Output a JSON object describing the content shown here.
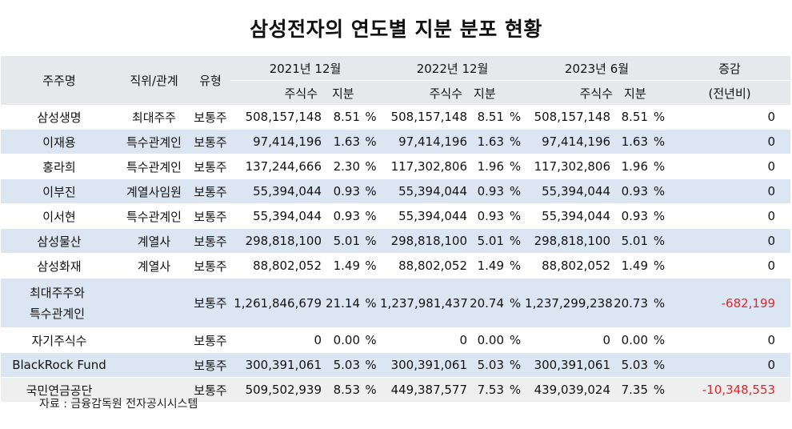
{
  "title": "삼성전자의 연도별 지분 분포 현황",
  "header": {
    "shareholder": "주주명",
    "position": "직위/관계",
    "type": "유형",
    "period1": "2021년 12월",
    "period2": "2022년 12월",
    "period3": "2023년 6월",
    "change": "증감",
    "change_sub": "(전년비)",
    "shares": "주식수",
    "stake": "지분"
  },
  "rows": [
    {
      "name": "삼성생명",
      "relation": "최대주주",
      "type": "보통주",
      "s1": "508,157,148",
      "p1": "8.51",
      "s2": "508,157,148",
      "p2": "8.51",
      "s3": "508,157,148",
      "p3": "8.51",
      "change": "0"
    },
    {
      "name": "이재용",
      "relation": "특수관계인",
      "type": "보통주",
      "s1": "97,414,196",
      "p1": "1.63",
      "s2": "97,414,196",
      "p2": "1.63",
      "s3": "97,414,196",
      "p3": "1.63",
      "change": "0"
    },
    {
      "name": "홍라희",
      "relation": "특수관계인",
      "type": "보통주",
      "s1": "137,244,666",
      "p1": "2.30",
      "s2": "117,302,806",
      "p2": "1.96",
      "s3": "117,302,806",
      "p3": "1.96",
      "change": "0"
    },
    {
      "name": "이부진",
      "relation": "계열사임원",
      "type": "보통주",
      "s1": "55,394,044",
      "p1": "0.93",
      "s2": "55,394,044",
      "p2": "0.93",
      "s3": "55,394,044",
      "p3": "0.93",
      "change": "0"
    },
    {
      "name": "이서현",
      "relation": "특수관계인",
      "type": "보통주",
      "s1": "55,394,044",
      "p1": "0.93",
      "s2": "55,394,044",
      "p2": "0.93",
      "s3": "55,394,044",
      "p3": "0.93",
      "change": "0"
    },
    {
      "name": "삼성물산",
      "relation": "계열사",
      "type": "보통주",
      "s1": "298,818,100",
      "p1": "5.01",
      "s2": "298,818,100",
      "p2": "5.01",
      "s3": "298,818,100",
      "p3": "5.01",
      "change": "0"
    },
    {
      "name": "삼성화재",
      "relation": "계열사",
      "type": "보통주",
      "s1": "88,802,052",
      "p1": "1.49",
      "s2": "88,802,052",
      "p2": "1.49",
      "s3": "88,802,052",
      "p3": "1.49",
      "change": "0"
    },
    {
      "name_line1": "최대주주와",
      "name_line2": "특수관계인",
      "relation": "",
      "type": "보통주",
      "s1": "1,261,846,679",
      "p1": "21.14",
      "s2": "1,237,981,437",
      "p2": "20.74",
      "s3": "1,237,299,238",
      "p3": "20.73",
      "change": "-682,199"
    },
    {
      "name": "자기주식수",
      "relation": "",
      "type": "보통주",
      "s1": "0",
      "p1": "0.00",
      "s2": "0",
      "p2": "0.00",
      "s3": "0",
      "p3": "0.00",
      "change": "0"
    },
    {
      "name": "BlackRock Fund",
      "relation": "",
      "type": "보통주",
      "s1": "300,391,061",
      "p1": "5.03",
      "s2": "300,391,061",
      "p2": "5.03",
      "s3": "300,391,061",
      "p3": "5.03",
      "change": "0"
    },
    {
      "name": "국민연금공단",
      "relation": "",
      "type": "보통주",
      "s1": "509,502,939",
      "p1": "8.53",
      "s2": "449,387,577",
      "p2": "7.53",
      "s3": "439,039,024",
      "p3": "7.35",
      "change": "-10,348,553"
    }
  ],
  "percent_sign": "%",
  "source": "자료 : 금융감독원 전자공시시스템",
  "colors": {
    "header_bg": "#e7e8ec",
    "band_bg": "#dce6f2",
    "last_bg": "#efefef",
    "negative": "#e0262a"
  }
}
